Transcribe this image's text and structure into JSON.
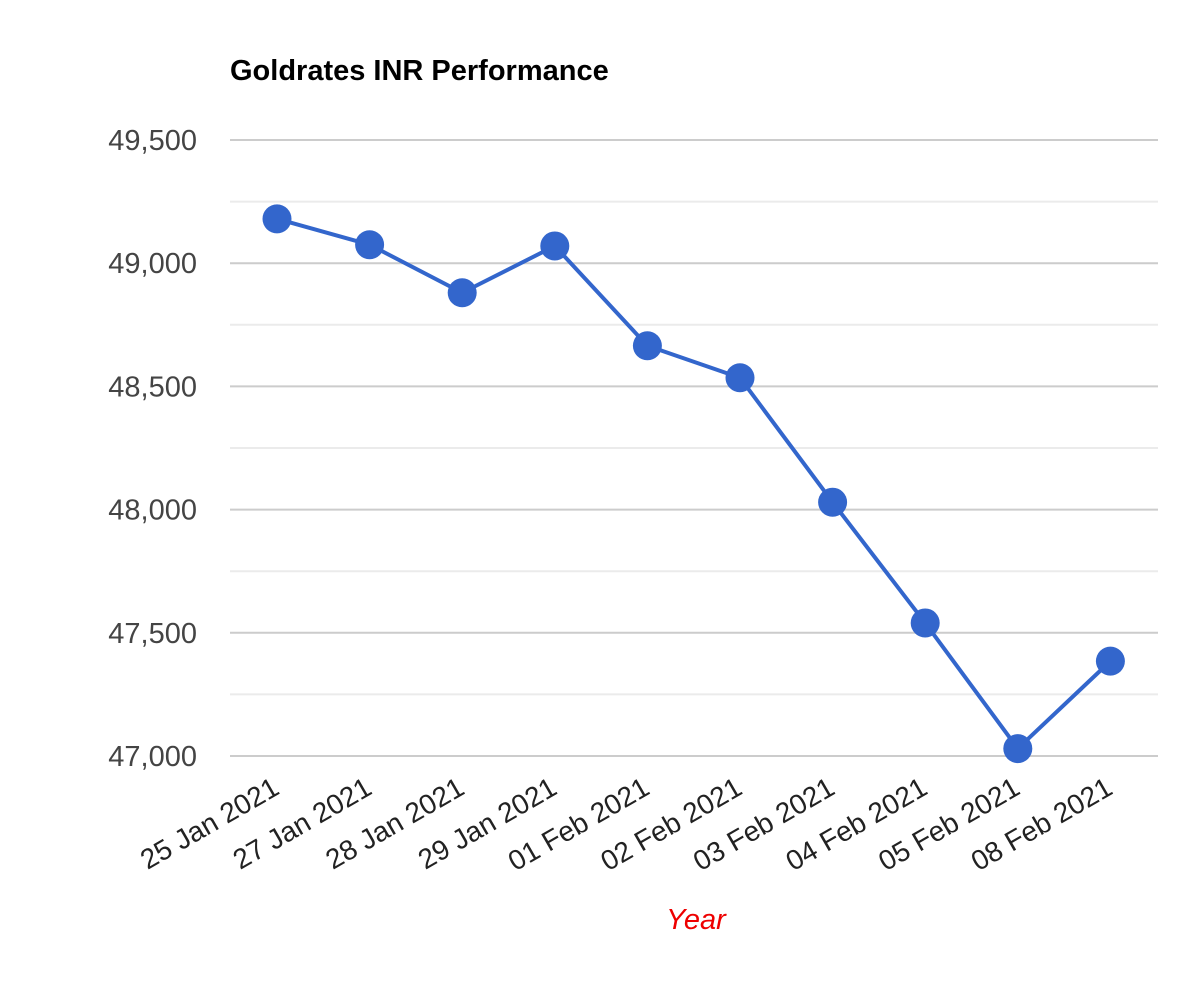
{
  "chart_data": {
    "type": "line",
    "title": "Goldrates INR Performance",
    "xlabel": "Year",
    "ylabel": "",
    "categories": [
      "25 Jan 2021",
      "27 Jan 2021",
      "28 Jan 2021",
      "29 Jan 2021",
      "01 Feb 2021",
      "02 Feb 2021",
      "03 Feb 2021",
      "04 Feb 2021",
      "05 Feb 2021",
      "08 Feb 2021"
    ],
    "series": [
      {
        "values": [
          49180,
          49075,
          48880,
          49070,
          48665,
          48535,
          48030,
          47540,
          47030,
          47385
        ]
      }
    ],
    "ylim": [
      47000,
      49500
    ],
    "yticks": [
      47000,
      47500,
      48000,
      48500,
      49000,
      49500
    ],
    "ytick_labels": [
      "47,000",
      "47,500",
      "48,000",
      "48,500",
      "49,000",
      "49,500"
    ],
    "minor_gridlines": true,
    "grid": true,
    "legend": "none"
  },
  "colors": {
    "series": "#3366cc",
    "major_grid": "#cccccc",
    "minor_grid": "#ebebeb",
    "axis_title": "#ee0000"
  }
}
